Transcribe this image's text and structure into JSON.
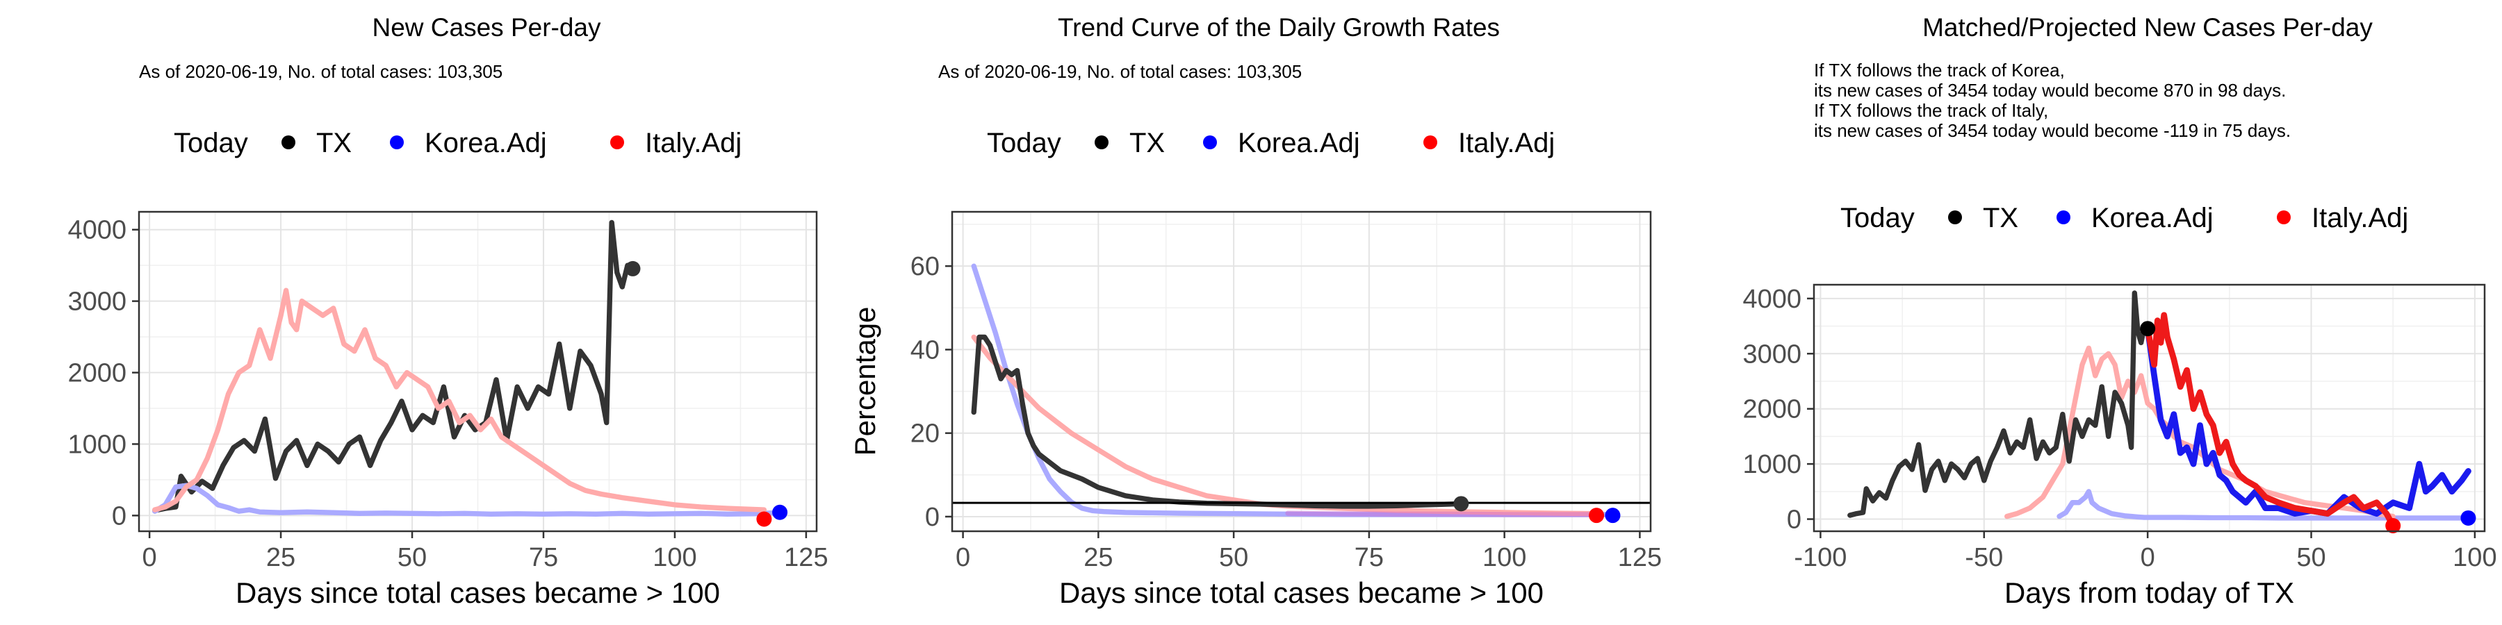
{
  "chart_data": [
    {
      "type": "line",
      "title": "New Cases Per-day",
      "subtitle": "As of 2020-06-19, No. of total cases: 103,305",
      "xlabel": "Days since total cases became > 100",
      "ylabel": "",
      "xlim": [
        -2,
        127
      ],
      "ylim": [
        -220,
        4250
      ],
      "xticks": [
        0,
        25,
        50,
        75,
        100,
        125
      ],
      "yticks": [
        0,
        1000,
        2000,
        3000,
        4000
      ],
      "grid": true,
      "legend": {
        "placement": "top",
        "title": "Today",
        "items": [
          {
            "label": "TX",
            "color": "#000000"
          },
          {
            "label": "Korea.Adj",
            "color": "#0000ff"
          },
          {
            "label": "Italy.Adj",
            "color": "#ff0000"
          }
        ]
      },
      "series": [
        {
          "name": "TX",
          "color": "#333333",
          "width": 3.2,
          "opacity": 1,
          "x": [
            1,
            3,
            5,
            6,
            8,
            10,
            12,
            14,
            16,
            18,
            20,
            22,
            24,
            26,
            28,
            30,
            32,
            34,
            36,
            38,
            40,
            42,
            44,
            46,
            48,
            50,
            52,
            54,
            56,
            58,
            60,
            62,
            64,
            66,
            68,
            70,
            72,
            74,
            76,
            78,
            80,
            82,
            84,
            86,
            87,
            88,
            89,
            90,
            91,
            92
          ],
          "y": [
            70,
            100,
            120,
            550,
            330,
            480,
            380,
            700,
            950,
            1050,
            900,
            1350,
            520,
            900,
            1050,
            700,
            1000,
            900,
            750,
            1000,
            1100,
            700,
            1050,
            1300,
            1600,
            1200,
            1400,
            1300,
            1800,
            1100,
            1400,
            1200,
            1300,
            1900,
            1050,
            1800,
            1500,
            1800,
            1700,
            2400,
            1500,
            2300,
            2100,
            1700,
            1300,
            4100,
            3400,
            3200,
            3500,
            3454
          ]
        },
        {
          "name": "Korea.Adj",
          "color": "#aaaaff",
          "width": 3.2,
          "opacity": 1,
          "x": [
            1,
            3,
            5,
            7,
            9,
            11,
            13,
            15,
            17,
            19,
            21,
            25,
            30,
            35,
            40,
            45,
            50,
            55,
            60,
            65,
            70,
            75,
            80,
            85,
            90,
            95,
            100,
            105,
            110,
            115,
            120
          ],
          "y": [
            60,
            150,
            400,
            420,
            380,
            280,
            150,
            110,
            60,
            80,
            50,
            40,
            50,
            40,
            30,
            35,
            30,
            25,
            30,
            20,
            25,
            20,
            25,
            20,
            30,
            20,
            25,
            30,
            20,
            25,
            40
          ]
        },
        {
          "name": "Italy.Adj",
          "color": "#ffaaaa",
          "width": 3.2,
          "opacity": 1,
          "x": [
            1,
            3,
            5,
            7,
            9,
            11,
            13,
            15,
            17,
            19,
            21,
            23,
            25,
            26,
            27,
            28,
            29,
            31,
            33,
            35,
            37,
            39,
            41,
            43,
            45,
            47,
            49,
            51,
            53,
            55,
            57,
            59,
            61,
            63,
            65,
            67,
            69,
            71,
            73,
            75,
            77,
            80,
            83,
            86,
            90,
            95,
            100,
            105,
            110,
            117
          ],
          "y": [
            80,
            120,
            200,
            400,
            500,
            800,
            1200,
            1700,
            2000,
            2100,
            2600,
            2200,
            2800,
            3150,
            2700,
            2600,
            3000,
            2900,
            2800,
            2900,
            2400,
            2300,
            2600,
            2200,
            2100,
            1800,
            2000,
            1900,
            1800,
            1500,
            1600,
            1300,
            1400,
            1200,
            1350,
            1100,
            1000,
            900,
            800,
            700,
            600,
            450,
            350,
            300,
            250,
            200,
            150,
            120,
            100,
            80
          ]
        }
      ],
      "today_points": [
        {
          "label": "TX",
          "x": 92,
          "y": 3454,
          "color": "#333333"
        },
        {
          "label": "Korea.Adj",
          "x": 120,
          "y": 45,
          "color": "#0000ff"
        },
        {
          "label": "Italy.Adj",
          "x": 117,
          "y": -50,
          "color": "#ff0000"
        }
      ]
    },
    {
      "type": "line",
      "title": "Trend Curve of the Daily Growth Rates",
      "subtitle": "As of 2020-06-19, No. of total cases: 103,305",
      "xlabel": "Days since total cases became > 100",
      "ylabel": "Percentage",
      "xlim": [
        -2,
        127
      ],
      "ylim": [
        -3.5,
        73
      ],
      "xticks": [
        0,
        25,
        50,
        75,
        100,
        125
      ],
      "yticks": [
        0,
        20,
        40,
        60
      ],
      "grid": true,
      "hline": 3.3,
      "legend": {
        "placement": "top",
        "title": "Today",
        "items": [
          {
            "label": "TX",
            "color": "#000000"
          },
          {
            "label": "Korea.Adj",
            "color": "#0000ff"
          },
          {
            "label": "Italy.Adj",
            "color": "#ff0000"
          }
        ]
      },
      "series": [
        {
          "name": "Korea.Adj",
          "color": "#aaaaff",
          "width": 3.2,
          "opacity": 1,
          "x": [
            2,
            4,
            6,
            8,
            10,
            12,
            14,
            16,
            18,
            20,
            22,
            24,
            26,
            28,
            30,
            35,
            40,
            50,
            60,
            70,
            80,
            90,
            100,
            110,
            120
          ],
          "y": [
            60,
            52,
            44,
            35,
            27,
            20,
            14,
            9,
            6,
            3.5,
            2,
            1.4,
            1.2,
            1.1,
            1,
            0.9,
            0.8,
            0.7,
            0.6,
            0.5,
            0.5,
            0.5,
            0.5,
            0.5,
            0.5
          ]
        },
        {
          "name": "Italy.Adj",
          "color": "#ffaaaa",
          "width": 3.2,
          "opacity": 1,
          "x": [
            2,
            5,
            8,
            11,
            14,
            17,
            20,
            25,
            30,
            35,
            40,
            45,
            50,
            55,
            60,
            70,
            80,
            90,
            100,
            110,
            117
          ],
          "y": [
            43,
            38,
            34,
            30,
            26,
            23,
            20,
            16,
            12,
            9,
            7,
            5,
            4,
            3,
            2.5,
            2,
            1.5,
            1.2,
            1,
            0.8,
            0.7
          ]
        },
        {
          "name": "TX",
          "color": "#333333",
          "width": 3.2,
          "opacity": 1,
          "x": [
            2,
            3,
            4,
            5,
            6,
            7,
            8,
            9,
            10,
            11,
            12,
            13,
            14,
            16,
            18,
            20,
            22,
            25,
            30,
            35,
            40,
            45,
            50,
            55,
            60,
            65,
            70,
            75,
            80,
            85,
            90,
            92
          ],
          "y": [
            25,
            43,
            43,
            41,
            37,
            33,
            35,
            34,
            35,
            27,
            20,
            17,
            15,
            13,
            11,
            10,
            9,
            7,
            5,
            4,
            3.5,
            3.2,
            3.1,
            3,
            2.8,
            2.6,
            2.5,
            2.5,
            2.6,
            2.8,
            3,
            3.1
          ]
        },
        {
          "name": "Italy.Adj blend",
          "color": "#cc66cc",
          "width": 3.2,
          "opacity": 0.45,
          "x": [
            60,
            70,
            80,
            90,
            100,
            110,
            117
          ],
          "y": [
            0.8,
            0.7,
            0.6,
            0.6,
            0.5,
            0.5,
            0.5
          ]
        }
      ],
      "today_points": [
        {
          "label": "TX",
          "x": 92,
          "y": 3.1,
          "color": "#333333"
        },
        {
          "label": "Korea.Adj",
          "x": 120,
          "y": 0.3,
          "color": "#0000ff"
        },
        {
          "label": "Italy.Adj",
          "x": 117,
          "y": 0.3,
          "color": "#ff0000"
        }
      ]
    },
    {
      "type": "line",
      "title": "Matched/Projected New Cases Per-day",
      "annotation": [
        "If TX follows the track of Korea,",
        "its new cases of 3454 today would become 870 in 98 days.",
        "If TX follows the track of Italy,",
        "its new cases of 3454 today would become -119 in 75 days."
      ],
      "xlabel": "Days from today of TX",
      "ylabel": "",
      "xlim": [
        -102,
        103
      ],
      "ylim": [
        -220,
        4250
      ],
      "xticks": [
        -100,
        -50,
        0,
        50,
        100
      ],
      "yticks": [
        0,
        1000,
        2000,
        3000,
        4000
      ],
      "grid": true,
      "legend": {
        "placement": "top",
        "title": "Today",
        "items": [
          {
            "label": "TX",
            "color": "#000000"
          },
          {
            "label": "Korea.Adj",
            "color": "#0000ff"
          },
          {
            "label": "Italy.Adj",
            "color": "#ff0000"
          }
        ]
      },
      "series": [
        {
          "name": "Korea.Adj (past)",
          "color": "#aaaaff",
          "width": 3.2,
          "opacity": 1,
          "x": [
            -27,
            -25,
            -23,
            -21,
            -19,
            -18,
            -17,
            -15,
            -13,
            -11,
            -9,
            -7,
            -5,
            -3,
            -1,
            0,
            10,
            20,
            30,
            40,
            50,
            60,
            70,
            80,
            90,
            98
          ],
          "y": [
            50,
            120,
            300,
            300,
            400,
            500,
            300,
            200,
            150,
            100,
            80,
            60,
            50,
            40,
            30,
            30,
            30,
            25,
            25,
            20,
            20,
            20,
            20,
            20,
            20,
            20
          ]
        },
        {
          "name": "Italy.Adj (past)",
          "color": "#ffaaaa",
          "width": 3.2,
          "opacity": 1,
          "x": [
            -43,
            -40,
            -36,
            -32,
            -29,
            -26,
            -24,
            -22,
            -20,
            -18,
            -16,
            -14,
            -12,
            -10,
            -8,
            -6,
            -4,
            -2,
            0,
            2,
            4,
            6,
            8,
            10,
            14,
            18,
            22,
            26,
            30,
            36,
            42,
            48,
            54,
            60,
            66,
            70,
            75
          ],
          "y": [
            50,
            100,
            200,
            400,
            700,
            1000,
            1600,
            2200,
            2800,
            3100,
            2600,
            2900,
            3000,
            2800,
            2200,
            2500,
            2300,
            2600,
            2100,
            2000,
            1800,
            1700,
            1500,
            1400,
            1300,
            1100,
            900,
            800,
            700,
            500,
            400,
            300,
            250,
            200,
            150,
            100,
            50
          ]
        },
        {
          "name": "TX",
          "color": "#333333",
          "width": 3.2,
          "opacity": 1,
          "x": [
            -91,
            -89,
            -87,
            -86,
            -84,
            -82,
            -80,
            -78,
            -76,
            -74,
            -72,
            -70,
            -68,
            -66,
            -64,
            -62,
            -60,
            -58,
            -56,
            -54,
            -52,
            -50,
            -48,
            -46,
            -44,
            -42,
            -40,
            -38,
            -36,
            -34,
            -32,
            -30,
            -28,
            -26,
            -24,
            -22,
            -20,
            -18,
            -16,
            -14,
            -12,
            -10,
            -8,
            -6,
            -5,
            -4,
            -3,
            -2,
            -1,
            0
          ],
          "y": [
            70,
            100,
            120,
            550,
            330,
            480,
            380,
            700,
            950,
            1050,
            900,
            1350,
            520,
            900,
            1050,
            700,
            1000,
            900,
            750,
            1000,
            1100,
            700,
            1050,
            1300,
            1600,
            1200,
            1400,
            1300,
            1800,
            1100,
            1400,
            1200,
            1300,
            1900,
            1050,
            1800,
            1500,
            1800,
            1700,
            2400,
            1500,
            2300,
            2100,
            1700,
            1300,
            4100,
            3400,
            3200,
            3500,
            3454
          ]
        },
        {
          "name": "Korea.Adj (projected)",
          "color": "#1a1aee",
          "width": 3.8,
          "opacity": 1,
          "x": [
            0,
            2,
            4,
            6,
            8,
            10,
            12,
            14,
            16,
            18,
            20,
            22,
            24,
            26,
            28,
            30,
            33,
            36,
            40,
            45,
            50,
            55,
            60,
            65,
            70,
            75,
            80,
            83,
            85,
            87,
            90,
            93,
            96,
            98
          ],
          "y": [
            3454,
            2600,
            1800,
            1500,
            1900,
            1200,
            1300,
            1000,
            1700,
            1000,
            1200,
            800,
            700,
            500,
            400,
            300,
            500,
            200,
            200,
            100,
            150,
            100,
            400,
            200,
            100,
            300,
            200,
            1000,
            500,
            600,
            800,
            500,
            700,
            870
          ]
        },
        {
          "name": "Italy.Adj (projected)",
          "color": "#ee1a1a",
          "width": 3.8,
          "opacity": 1,
          "x": [
            0,
            2,
            3,
            4,
            5,
            6,
            8,
            10,
            12,
            14,
            16,
            18,
            20,
            22,
            24,
            26,
            28,
            30,
            33,
            36,
            40,
            45,
            50,
            55,
            60,
            63,
            66,
            70,
            73,
            75
          ],
          "y": [
            3454,
            2800,
            3600,
            3200,
            3700,
            3300,
            2900,
            2400,
            2700,
            2000,
            2300,
            1900,
            1700,
            1200,
            1400,
            1000,
            800,
            700,
            600,
            400,
            300,
            200,
            150,
            100,
            300,
            400,
            200,
            300,
            100,
            -119
          ]
        }
      ],
      "today_points": [
        {
          "label": "TX",
          "x": 0,
          "y": 3454,
          "color": "#000000"
        },
        {
          "label": "Korea.Adj",
          "x": 98,
          "y": 20,
          "color": "#0000ff"
        },
        {
          "label": "Italy.Adj",
          "x": 75,
          "y": -119,
          "color": "#ff0000"
        }
      ]
    }
  ]
}
